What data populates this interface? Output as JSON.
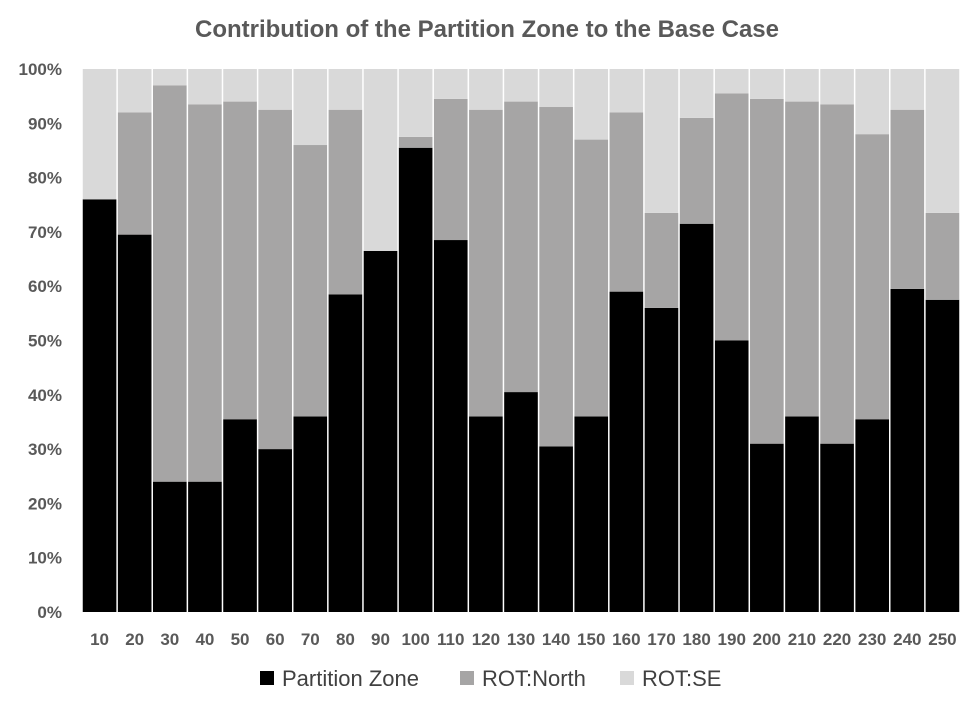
{
  "chart_data": {
    "type": "bar",
    "stacked": true,
    "normalized": true,
    "title": "Contribution of the Partition Zone to the Base Case",
    "xlabel": "",
    "ylabel": "",
    "ylim": [
      0,
      100
    ],
    "yticks": [
      "0%",
      "10%",
      "20%",
      "30%",
      "40%",
      "50%",
      "60%",
      "70%",
      "80%",
      "90%",
      "100%"
    ],
    "categories": [
      "10",
      "20",
      "30",
      "40",
      "50",
      "60",
      "70",
      "80",
      "90",
      "100",
      "110",
      "120",
      "130",
      "140",
      "150",
      "160",
      "170",
      "180",
      "190",
      "200",
      "210",
      "220",
      "230",
      "240",
      "250"
    ],
    "series": [
      {
        "name": "Partition Zone",
        "color": "#000000",
        "values": [
          76,
          69.5,
          24,
          24,
          35.5,
          30,
          36,
          58.5,
          66.5,
          85.5,
          68.5,
          36,
          40.5,
          30.5,
          36,
          59,
          56,
          71.5,
          50,
          31,
          36,
          31,
          35.5,
          59.5,
          57.5
        ]
      },
      {
        "name": "ROT:North",
        "color": "#a6a5a5",
        "values": [
          0,
          22.5,
          73,
          69.5,
          58.5,
          62.5,
          50,
          34,
          0,
          2,
          26,
          56.5,
          53.5,
          62.5,
          51,
          33,
          17.5,
          19.5,
          45.5,
          63.5,
          58,
          62.5,
          52.5,
          33,
          16
        ]
      },
      {
        "name": "ROT:SE",
        "color": "#d9d9d9",
        "values": [
          24,
          8,
          3,
          6.5,
          6,
          7.5,
          14,
          7.5,
          33.5,
          12.5,
          5.5,
          7.5,
          6,
          7,
          13,
          8,
          26.5,
          9,
          4.5,
          5.5,
          6,
          6.5,
          12,
          7.5,
          26.5
        ]
      }
    ],
    "legend": "bottom",
    "grid": false
  }
}
